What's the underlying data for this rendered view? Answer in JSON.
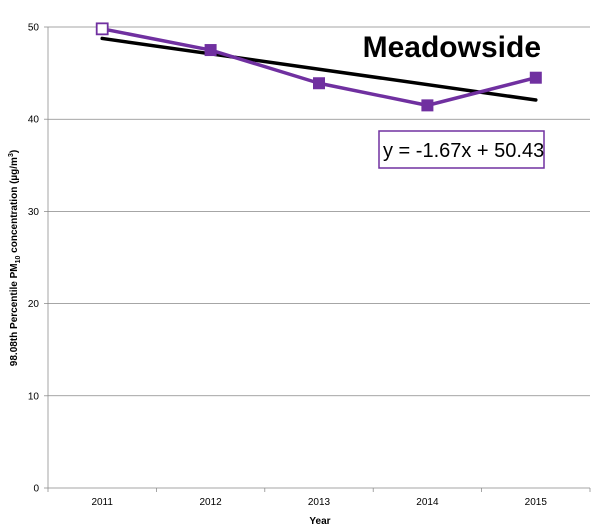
{
  "chart_data": {
    "type": "line",
    "title": "Meadowside",
    "xlabel": "Year",
    "ylabel_parts": {
      "main": "98.08th Percentile PM",
      "sub": "10",
      "tail": " concentration (µg/m",
      "sup": "3",
      "end": ")"
    },
    "categories": [
      "2011",
      "2012",
      "2013",
      "2014",
      "2015"
    ],
    "series": [
      {
        "values": [
          49.8,
          47.5,
          43.9,
          41.5,
          44.5
        ],
        "color": "#7030A0"
      }
    ],
    "trendline": {
      "equation": "y = -1.67x + 50.43",
      "slope": -1.67,
      "intercept": 50.43,
      "color": "#000000"
    },
    "ylim": [
      0,
      50
    ],
    "yticks": [
      0,
      10,
      20,
      30,
      40,
      50
    ],
    "grid": true,
    "legend": "none",
    "colors": {
      "series": "#7030A0",
      "equation_border": "#7030A0",
      "trendline": "#000000",
      "gridline": "#888888"
    }
  }
}
